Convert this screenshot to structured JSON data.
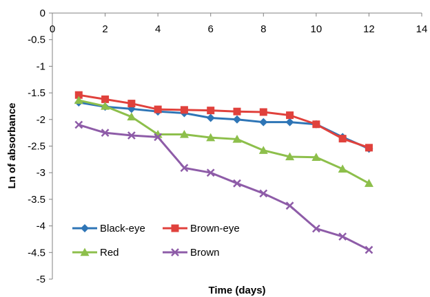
{
  "chart_data": {
    "type": "line",
    "title": "",
    "xlabel": "Time (days)",
    "ylabel": "Ln of absorbance",
    "xlim": [
      0,
      14
    ],
    "ylim": [
      -5,
      0
    ],
    "x_ticks": [
      0,
      2,
      4,
      6,
      8,
      10,
      12,
      14
    ],
    "y_ticks": [
      0,
      -0.5,
      -1,
      -1.5,
      -2,
      -2.5,
      -3,
      -3.5,
      -4,
      -4.5,
      -5
    ],
    "x_tick_labels": [
      "0",
      "2",
      "4",
      "6",
      "8",
      "10",
      "12",
      "14"
    ],
    "y_tick_labels": [
      "0",
      "-0.5",
      "-1",
      "-1.5",
      "-2",
      "-2.5",
      "-3",
      "-3.5",
      "-4",
      "-4.5",
      "-5"
    ],
    "x_axis_position": "top",
    "grid": false,
    "legend_position": "bottom-left",
    "x": [
      1,
      2,
      3,
      4,
      5,
      6,
      7,
      8,
      9,
      10,
      11,
      12
    ],
    "series": [
      {
        "name": "Black-eye",
        "color": "#2E75B6",
        "marker": "diamond",
        "values": [
          -1.68,
          -1.76,
          -1.8,
          -1.85,
          -1.88,
          -1.97,
          -2.0,
          -2.05,
          -2.05,
          -2.09,
          -2.33,
          -2.55
        ]
      },
      {
        "name": "Brown-eye",
        "color": "#E0413C",
        "marker": "square",
        "values": [
          -1.54,
          -1.62,
          -1.7,
          -1.81,
          -1.82,
          -1.83,
          -1.85,
          -1.86,
          -1.92,
          -2.09,
          -2.36,
          -2.53
        ]
      },
      {
        "name": "Red",
        "color": "#8DBF4B",
        "marker": "triangle",
        "values": [
          -1.64,
          -1.75,
          -1.95,
          -2.28,
          -2.28,
          -2.34,
          -2.37,
          -2.58,
          -2.7,
          -2.71,
          -2.93,
          -3.2
        ]
      },
      {
        "name": "Brown",
        "color": "#8E5CA8",
        "marker": "x",
        "values": [
          -2.1,
          -2.25,
          -2.3,
          -2.33,
          -2.91,
          -3.0,
          -3.2,
          -3.39,
          -3.62,
          -4.05,
          -4.2,
          -4.45
        ]
      }
    ]
  }
}
